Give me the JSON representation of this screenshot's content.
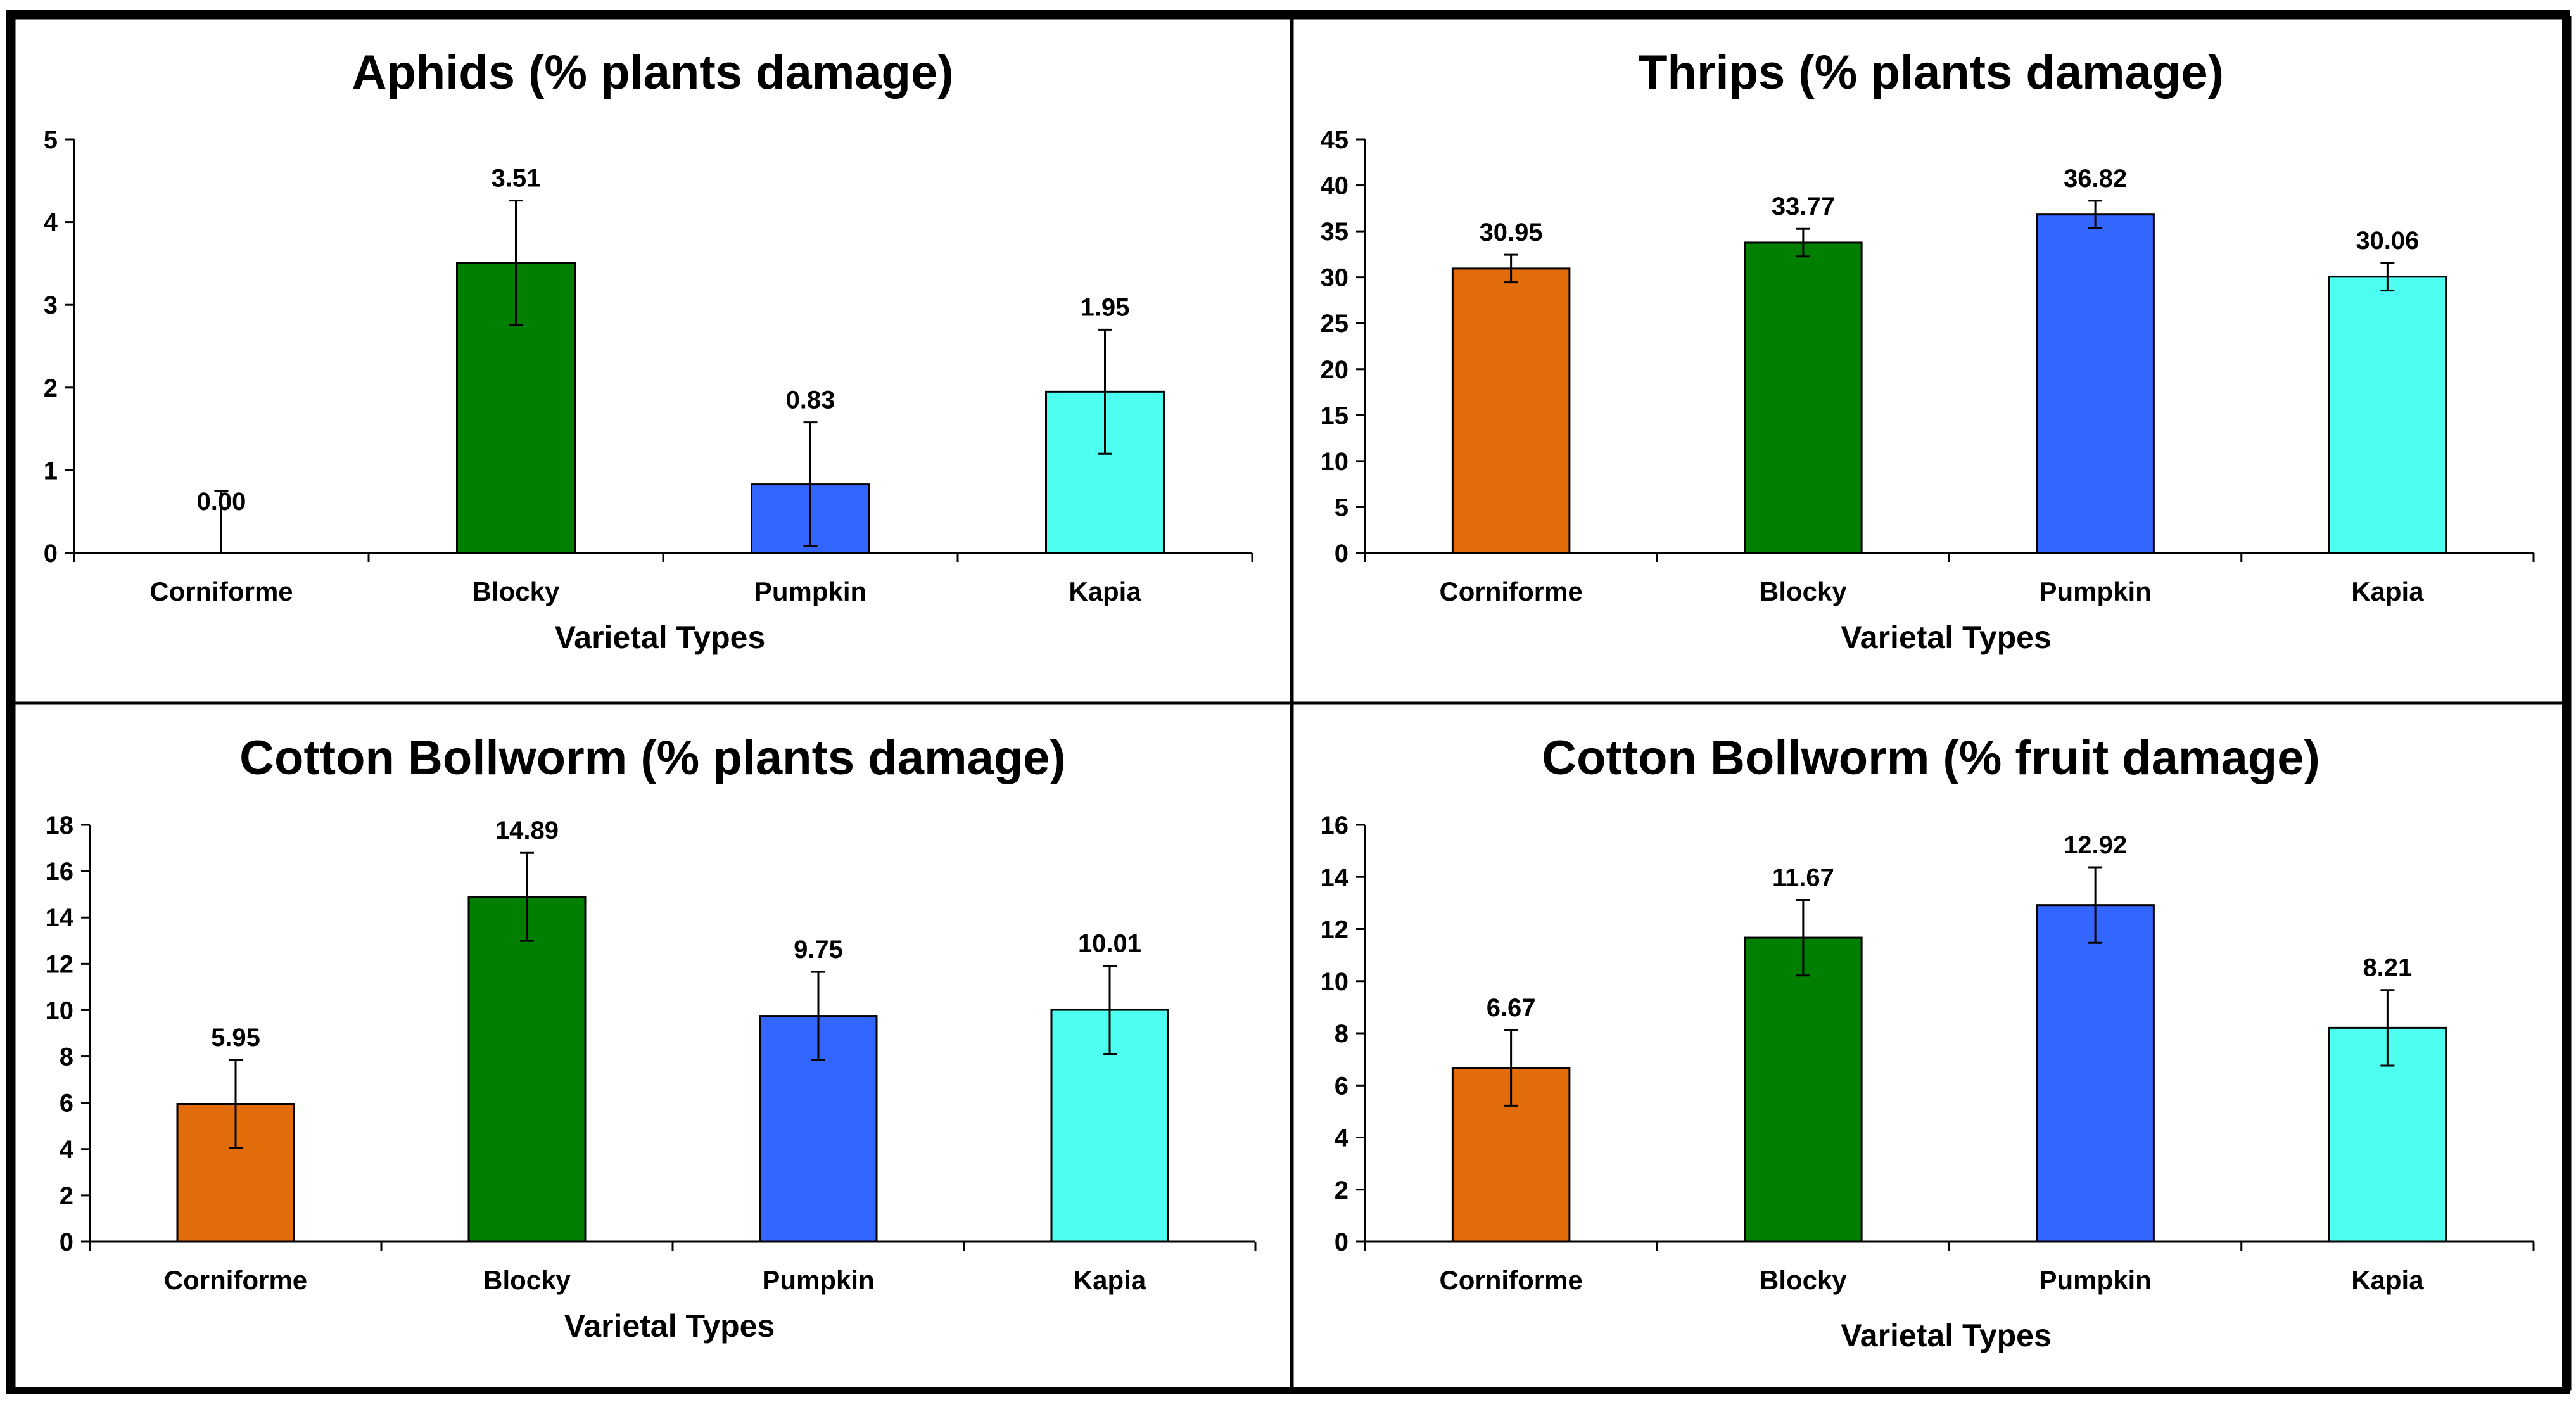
{
  "chart_data": [
    {
      "type": "bar",
      "title": "Aphids (% plants damage)",
      "xlabel": "Varietal Types",
      "ylabel": "",
      "categories": [
        "Corniforme",
        "Blocky",
        "Pumpkin",
        "Kapia"
      ],
      "values": [
        0.0,
        3.51,
        0.83,
        1.95
      ],
      "data_labels": [
        "0.00",
        "3.51",
        "0.83",
        "1.95"
      ],
      "errors": [
        0.75,
        0.75,
        0.75,
        0.75
      ],
      "ylim": [
        0,
        5
      ],
      "yticks": [
        "0",
        "1",
        "2",
        "3",
        "4",
        "5"
      ],
      "grid": false,
      "legend": "none"
    },
    {
      "type": "bar",
      "title": "Thrips (% plants damage)",
      "xlabel": "Varietal Types",
      "ylabel": "",
      "categories": [
        "Corniforme",
        "Blocky",
        "Pumpkin",
        "Kapia"
      ],
      "values": [
        30.95,
        33.77,
        36.82,
        30.06
      ],
      "data_labels": [
        "30.95",
        "33.77",
        "36.82",
        "30.06"
      ],
      "errors": [
        1.5,
        1.5,
        1.5,
        1.5
      ],
      "ylim": [
        0,
        45
      ],
      "yticks": [
        "0",
        "5",
        "10",
        "15",
        "20",
        "25",
        "30",
        "35",
        "40",
        "45"
      ],
      "grid": false,
      "legend": "none"
    },
    {
      "type": "bar",
      "title": "Cotton Bollworm (% plants damage)",
      "xlabel": "Varietal Types",
      "ylabel": "",
      "categories": [
        "Corniforme",
        "Blocky",
        "Pumpkin",
        "Kapia"
      ],
      "values": [
        5.95,
        14.89,
        9.75,
        10.01
      ],
      "data_labels": [
        "5.95",
        "14.89",
        "9.75",
        "10.01"
      ],
      "errors": [
        1.9,
        1.9,
        1.9,
        1.9
      ],
      "ylim": [
        0,
        18
      ],
      "yticks": [
        "0",
        "2",
        "4",
        "6",
        "8",
        "10",
        "12",
        "14",
        "16",
        "18"
      ],
      "grid": false,
      "legend": "none"
    },
    {
      "type": "bar",
      "title": "Cotton Bollworm (% fruit damage)",
      "xlabel": "Varietal Types",
      "ylabel": "",
      "categories": [
        "Corniforme",
        "Blocky",
        "Pumpkin",
        "Kapia"
      ],
      "values": [
        6.67,
        11.67,
        12.92,
        8.21
      ],
      "data_labels": [
        "6.67",
        "11.67",
        "12.92",
        "8.21"
      ],
      "errors": [
        1.45,
        1.45,
        1.45,
        1.45
      ],
      "ylim": [
        0,
        16
      ],
      "yticks": [
        "0",
        "2",
        "4",
        "6",
        "8",
        "10",
        "12",
        "14",
        "16"
      ],
      "grid": false,
      "legend": "none"
    }
  ],
  "colors": {
    "Corniforme": "#E36C0A",
    "Blocky": "#007F00",
    "Pumpkin": "#3366FF",
    "Kapia": "#4DFFF0"
  }
}
